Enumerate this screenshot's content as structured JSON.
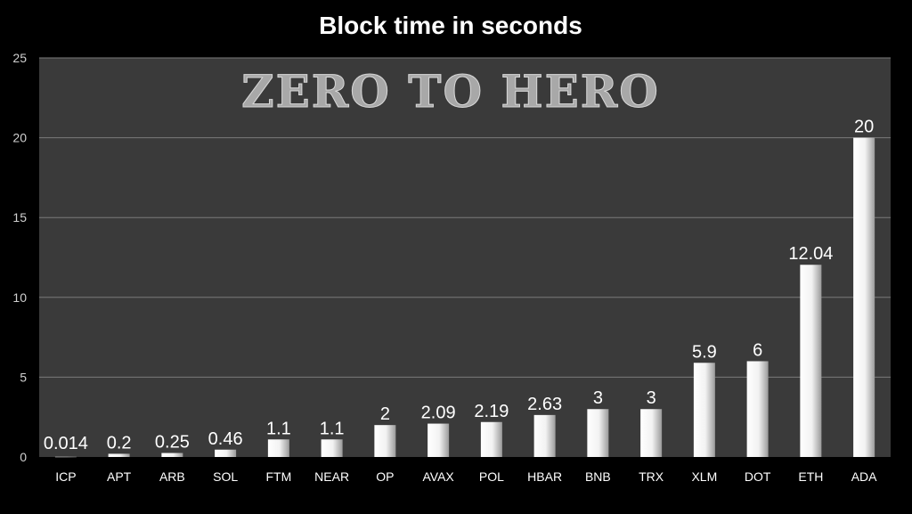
{
  "chart_data": {
    "type": "bar",
    "title": "Block time in seconds",
    "watermark": "ZERO TO HERO",
    "categories": [
      "ICP",
      "APT",
      "ARB",
      "SOL",
      "FTM",
      "NEAR",
      "OP",
      "AVAX",
      "POL",
      "HBAR",
      "BNB",
      "TRX",
      "XLM",
      "DOT",
      "ETH",
      "ADA"
    ],
    "values": [
      0.014,
      0.2,
      0.25,
      0.46,
      1.1,
      1.1,
      2,
      2.09,
      2.19,
      2.63,
      3,
      3,
      5.9,
      6,
      12.04,
      20
    ],
    "data_labels": [
      "0.014",
      "0.2",
      "0.25",
      "0.46",
      "1.1",
      "1.1",
      "2",
      "2.09",
      "2.19",
      "2.63",
      "3",
      "3",
      "5.9",
      "6",
      "12.04",
      "20"
    ],
    "ylim": [
      0,
      25
    ],
    "yticks": [
      0,
      5,
      10,
      15,
      20,
      25
    ],
    "ytick_labels": [
      "0",
      "5",
      "10",
      "15",
      "20",
      "25"
    ],
    "xlabel": "",
    "ylabel": "",
    "grid": true,
    "legend": "none",
    "colors": {
      "background": "#000000",
      "plot_area": "#3a3a3a",
      "gridline": "#7a7a7a",
      "bar_light": "#ffffff",
      "bar_dark": "#9a9a9a"
    }
  }
}
